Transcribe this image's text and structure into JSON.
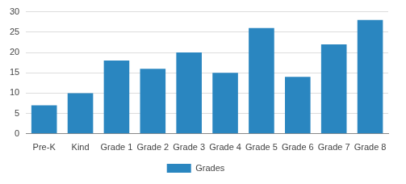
{
  "chart_data": {
    "type": "bar",
    "categories": [
      "Pre-K",
      "Kind",
      "Grade 1",
      "Grade 2",
      "Grade 3",
      "Grade 4",
      "Grade 5",
      "Grade 6",
      "Grade 7",
      "Grade 8"
    ],
    "series": [
      {
        "name": "Grades",
        "color": "#2a86c0",
        "values": [
          7,
          10,
          18,
          16,
          20,
          15,
          26,
          14,
          22,
          28
        ]
      }
    ],
    "ylim": [
      0,
      30
    ],
    "yticks": [
      0,
      5,
      10,
      15,
      20,
      25,
      30
    ],
    "grid": true,
    "legend": "bottom"
  }
}
